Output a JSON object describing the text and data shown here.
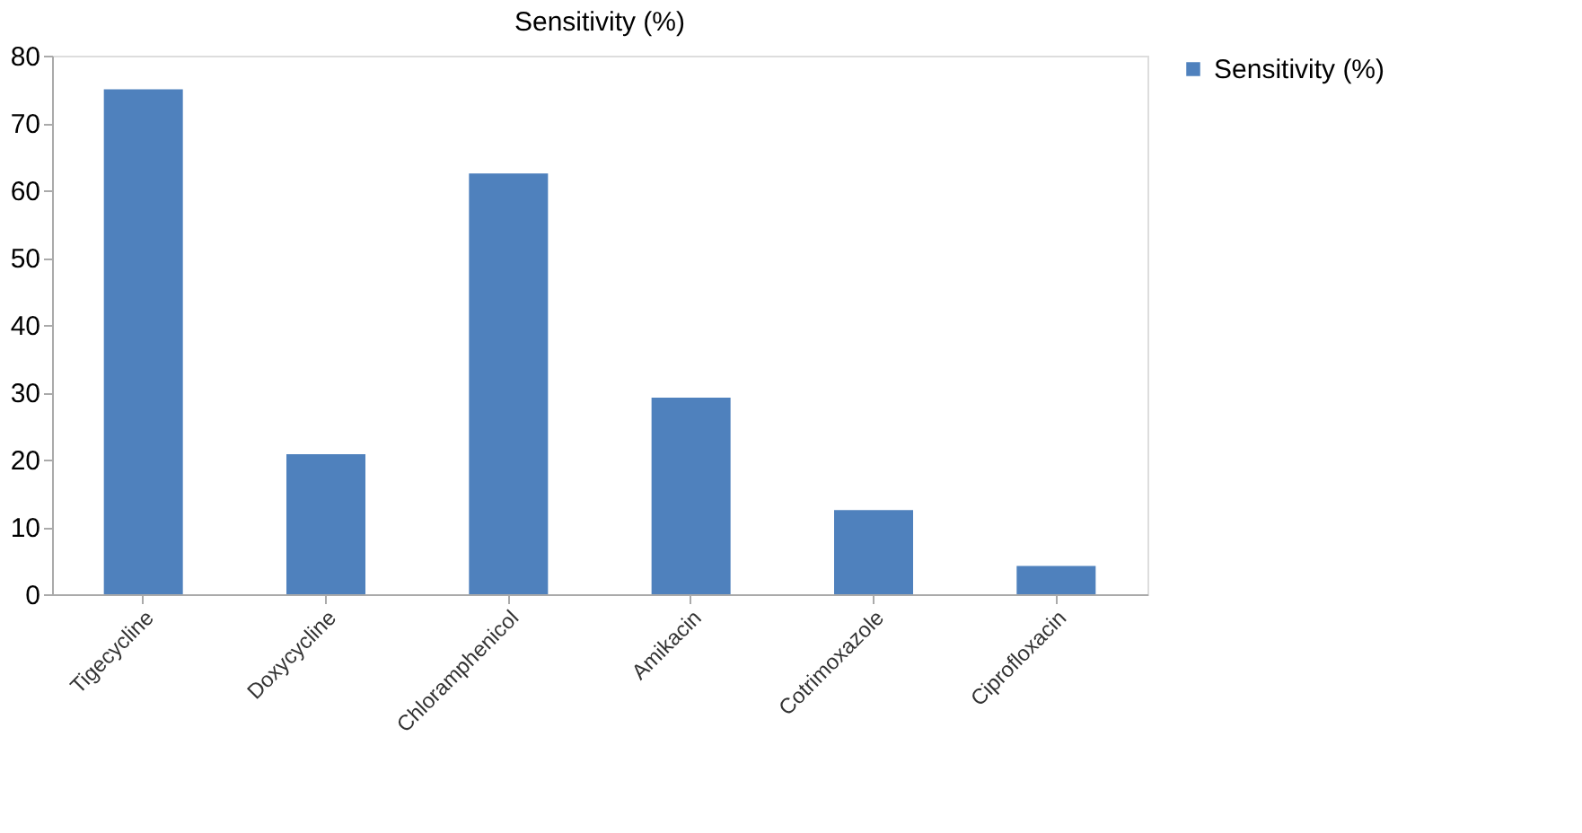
{
  "chart_data": {
    "type": "bar",
    "title": "Sensitivity (%)",
    "categories": [
      "Tigecycline",
      "Doxycycline",
      "Chloramphenicol",
      "Amikacin",
      "Cotrimoxazole",
      "Ciprofloxacin"
    ],
    "series": [
      {
        "name": "Sensitivity (%)",
        "color": "#4f81bd",
        "values": [
          75,
          20.8,
          62.5,
          29.2,
          12.5,
          4.2
        ]
      }
    ],
    "ylim": [
      0,
      80
    ],
    "yticks": [
      0,
      10,
      20,
      30,
      40,
      50,
      60,
      70,
      80
    ],
    "grid": false,
    "legend": "right"
  }
}
